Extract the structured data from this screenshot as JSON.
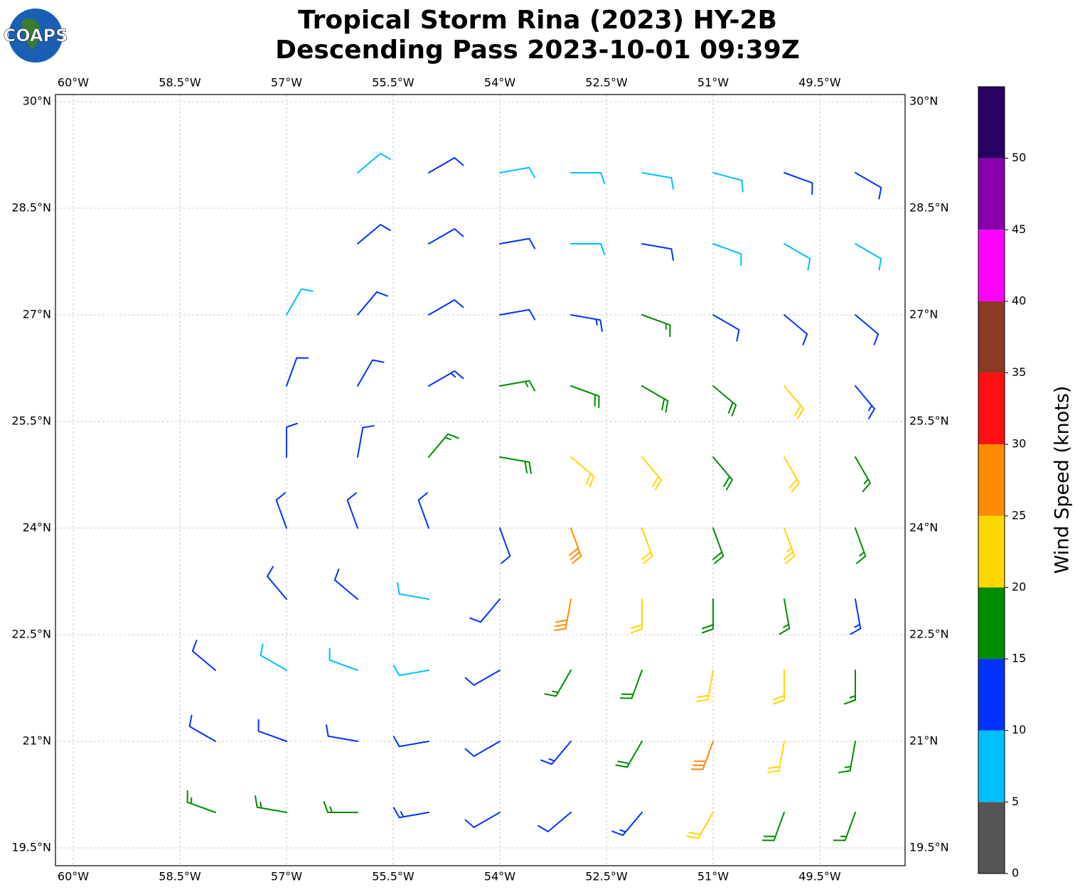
{
  "chart_data": {
    "type": "barbs",
    "logo_text": "COAPS",
    "title": "Tropical Storm Rina (2023) HY-2B",
    "subtitle": "Descending Pass 2023-10-01 09:39Z",
    "xlim": [
      -60.25,
      -48.3
    ],
    "ylim": [
      19.25,
      30.1
    ],
    "grid": true,
    "xticks": [
      {
        "value": -60,
        "label": "60°W"
      },
      {
        "value": -58.5,
        "label": "58.5°W"
      },
      {
        "value": -57,
        "label": "57°W"
      },
      {
        "value": -55.5,
        "label": "55.5°W"
      },
      {
        "value": -54,
        "label": "54°W"
      },
      {
        "value": -52.5,
        "label": "52.5°W"
      },
      {
        "value": -51,
        "label": "51°W"
      },
      {
        "value": -49.5,
        "label": "49.5°W"
      }
    ],
    "yticks": [
      {
        "value": 19.5,
        "label": "19.5°N"
      },
      {
        "value": 21,
        "label": "21°N"
      },
      {
        "value": 22.5,
        "label": "22.5°N"
      },
      {
        "value": 24,
        "label": "24°N"
      },
      {
        "value": 25.5,
        "label": "25.5°N"
      },
      {
        "value": 27,
        "label": "27°N"
      },
      {
        "value": 28.5,
        "label": "28.5°N"
      },
      {
        "value": 30,
        "label": "30°N"
      }
    ],
    "colorbar": {
      "label": "Wind Speed (knots)",
      "bounds": [
        0,
        5,
        10,
        15,
        20,
        25,
        30,
        35,
        40,
        45,
        50,
        55
      ],
      "ticks": [
        0,
        5,
        10,
        15,
        20,
        25,
        30,
        35,
        40,
        45,
        50
      ],
      "colors": [
        "#555555",
        "#00bfff",
        "#0033ff",
        "#008c00",
        "#ffd700",
        "#ff8c00",
        "#ff1010",
        "#8b3a24",
        "#ff00ff",
        "#8800aa",
        "#2a0060"
      ]
    },
    "barbs": {
      "lons": [
        -58,
        -57,
        -56,
        -55,
        -54,
        -53,
        -52,
        -51,
        -50,
        -49
      ],
      "lats": [
        29,
        28,
        27,
        26,
        25,
        24,
        23,
        22,
        21,
        20
      ],
      "speed": [
        [
          null,
          null,
          8,
          10,
          8,
          8,
          8,
          8,
          10,
          12
        ],
        [
          null,
          null,
          10,
          12,
          12,
          8,
          10,
          8,
          8,
          8
        ],
        [
          null,
          8,
          12,
          12,
          12,
          14,
          16,
          12,
          10,
          12
        ],
        [
          null,
          12,
          12,
          14,
          16,
          18,
          18,
          18,
          22,
          14
        ],
        [
          null,
          12,
          12,
          16,
          18,
          22,
          22,
          18,
          22,
          16
        ],
        [
          null,
          12,
          12,
          10,
          12,
          28,
          22,
          18,
          24,
          16
        ],
        [
          null,
          12,
          12,
          8,
          12,
          28,
          22,
          18,
          16,
          14
        ],
        [
          12,
          8,
          8,
          8,
          12,
          16,
          18,
          22,
          22,
          16
        ],
        [
          12,
          12,
          12,
          10,
          12,
          14,
          18,
          28,
          22,
          16
        ],
        [
          16,
          16,
          16,
          14,
          12,
          12,
          14,
          22,
          18,
          16
        ]
      ],
      "direction": [
        [
          null,
          null,
          50,
          60,
          80,
          90,
          100,
          105,
          110,
          120
        ],
        [
          null,
          null,
          50,
          60,
          80,
          90,
          100,
          110,
          120,
          120
        ],
        [
          null,
          30,
          40,
          60,
          80,
          100,
          110,
          120,
          130,
          130
        ],
        [
          null,
          20,
          30,
          60,
          80,
          110,
          120,
          130,
          140,
          140
        ],
        [
          null,
          0,
          10,
          40,
          100,
          130,
          140,
          140,
          150,
          150
        ],
        [
          null,
          340,
          340,
          340,
          160,
          160,
          160,
          160,
          160,
          160
        ],
        [
          null,
          320,
          310,
          280,
          220,
          190,
          180,
          180,
          170,
          170
        ],
        [
          310,
          300,
          290,
          260,
          240,
          210,
          200,
          190,
          180,
          180
        ],
        [
          300,
          290,
          280,
          260,
          240,
          220,
          210,
          200,
          190,
          190
        ],
        [
          290,
          280,
          270,
          260,
          240,
          230,
          220,
          210,
          200,
          200
        ]
      ]
    }
  }
}
